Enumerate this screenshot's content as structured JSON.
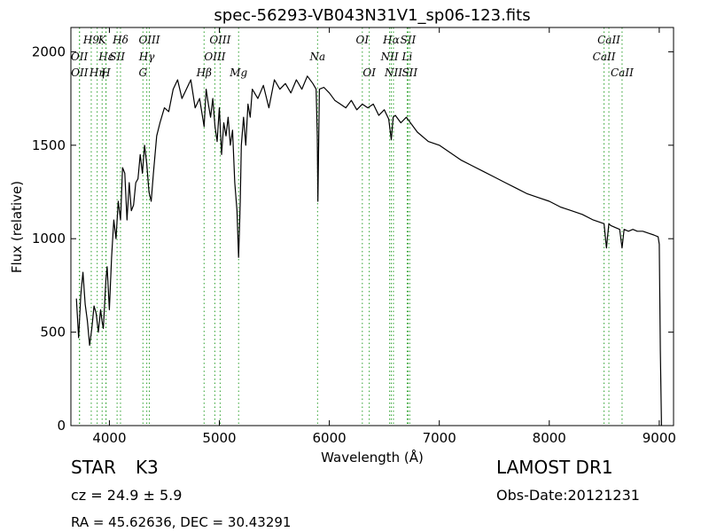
{
  "chart_data": {
    "type": "line",
    "title": "spec-56293-VB043N31V1_sp06-123.fits",
    "xlabel": "Wavelength (Å)",
    "ylabel": "Flux (relative)",
    "xlim": [
      3650,
      9130
    ],
    "ylim": [
      0,
      2130
    ],
    "xticks": [
      4000,
      5000,
      6000,
      7000,
      8000,
      9000
    ],
    "yticks": [
      0,
      500,
      1000,
      1500,
      2000
    ],
    "grid": false,
    "series": [
      {
        "x": [
          3700,
          3720,
          3740,
          3760,
          3780,
          3800,
          3820,
          3840,
          3860,
          3880,
          3900,
          3920,
          3933,
          3945,
          3968,
          3980,
          4000,
          4020,
          4040,
          4060,
          4080,
          4101,
          4120,
          4140,
          4160,
          4180,
          4200,
          4220,
          4240,
          4260,
          4280,
          4300,
          4320,
          4340,
          4360,
          4380,
          4400,
          4430,
          4460,
          4500,
          4540,
          4580,
          4620,
          4660,
          4700,
          4740,
          4780,
          4820,
          4861,
          4880,
          4900,
          4920,
          4940,
          4960,
          4980,
          5000,
          5020,
          5040,
          5060,
          5080,
          5100,
          5120,
          5140,
          5160,
          5175,
          5183,
          5190,
          5200,
          5220,
          5240,
          5260,
          5280,
          5300,
          5350,
          5400,
          5450,
          5500,
          5550,
          5600,
          5650,
          5700,
          5750,
          5800,
          5850,
          5880,
          5890,
          5896,
          5910,
          5950,
          6000,
          6050,
          6100,
          6150,
          6200,
          6250,
          6300,
          6350,
          6400,
          6450,
          6500,
          6540,
          6563,
          6580,
          6600,
          6650,
          6700,
          6800,
          6900,
          7000,
          7100,
          7200,
          7300,
          7400,
          7500,
          7600,
          7700,
          7800,
          7900,
          8000,
          8100,
          8200,
          8300,
          8400,
          8450,
          8498,
          8520,
          8542,
          8560,
          8600,
          8640,
          8662,
          8680,
          8720,
          8760,
          8800,
          8850,
          8900,
          8950,
          8990,
          9000,
          9010,
          9020
        ],
        "values": [
          680,
          470,
          700,
          820,
          650,
          560,
          430,
          520,
          640,
          600,
          500,
          620,
          560,
          520,
          780,
          850,
          620,
          900,
          1100,
          1000,
          1200,
          1100,
          1380,
          1350,
          1100,
          1300,
          1150,
          1180,
          1300,
          1320,
          1450,
          1350,
          1500,
          1400,
          1250,
          1200,
          1350,
          1550,
          1620,
          1700,
          1680,
          1800,
          1850,
          1750,
          1800,
          1850,
          1700,
          1750,
          1600,
          1800,
          1720,
          1650,
          1750,
          1600,
          1520,
          1700,
          1450,
          1620,
          1550,
          1650,
          1500,
          1580,
          1300,
          1150,
          900,
          1050,
          1200,
          1500,
          1650,
          1500,
          1720,
          1650,
          1800,
          1750,
          1820,
          1700,
          1850,
          1800,
          1830,
          1780,
          1850,
          1800,
          1870,
          1830,
          1800,
          1550,
          1200,
          1800,
          1810,
          1780,
          1740,
          1720,
          1700,
          1740,
          1690,
          1720,
          1700,
          1720,
          1660,
          1690,
          1640,
          1530,
          1650,
          1660,
          1620,
          1650,
          1570,
          1520,
          1500,
          1460,
          1420,
          1390,
          1360,
          1330,
          1300,
          1270,
          1240,
          1220,
          1200,
          1170,
          1150,
          1130,
          1100,
          1090,
          1080,
          950,
          1080,
          1070,
          1060,
          1050,
          950,
          1050,
          1040,
          1050,
          1040,
          1040,
          1030,
          1020,
          1010,
          970,
          400,
          0
        ]
      }
    ],
    "lines": [
      {
        "name": "H9",
        "x": 3835,
        "style": "top"
      },
      {
        "name": "OII",
        "x": 3727,
        "style": "mid"
      },
      {
        "name": "OII",
        "x": 3729,
        "style": "bottom"
      },
      {
        "name": "Hη",
        "x": 3889,
        "style": "bottom"
      },
      {
        "name": "Hε",
        "x": 3970,
        "style": "mid"
      },
      {
        "name": "K",
        "x": 3934,
        "style": "top"
      },
      {
        "name": "SII",
        "x": 4070,
        "style": "mid"
      },
      {
        "name": "H",
        "x": 3968,
        "style": "bottom"
      },
      {
        "name": "Hδ",
        "x": 4101,
        "style": "top"
      },
      {
        "name": "OIII",
        "x": 4363,
        "style": "top"
      },
      {
        "name": "Hγ",
        "x": 4340,
        "style": "mid"
      },
      {
        "name": "G",
        "x": 4305,
        "style": "bottom"
      },
      {
        "name": "OIII",
        "x": 5007,
        "style": "top"
      },
      {
        "name": "OIII",
        "x": 4959,
        "style": "mid"
      },
      {
        "name": "Hβ",
        "x": 4861,
        "style": "bottom"
      },
      {
        "name": "Mg",
        "x": 5175,
        "style": "bottom"
      },
      {
        "name": "Na",
        "x": 5893,
        "style": "mid"
      },
      {
        "name": "OI",
        "x": 6300,
        "style": "top"
      },
      {
        "name": "OI",
        "x": 6363,
        "style": "bottom"
      },
      {
        "name": "Hα",
        "x": 6563,
        "style": "top"
      },
      {
        "name": "SII",
        "x": 6716,
        "style": "top"
      },
      {
        "name": "NII",
        "x": 6548,
        "style": "mid"
      },
      {
        "name": "Li",
        "x": 6708,
        "style": "mid"
      },
      {
        "name": "NII",
        "x": 6583,
        "style": "bottom"
      },
      {
        "name": "SII",
        "x": 6731,
        "style": "bottom"
      },
      {
        "name": "CaII",
        "x": 8542,
        "style": "top"
      },
      {
        "name": "CaII",
        "x": 8498,
        "style": "mid"
      },
      {
        "name": "CaII",
        "x": 8662,
        "style": "bottom"
      }
    ]
  },
  "footer": {
    "class_label": "STAR",
    "subclass": "K3",
    "cz": "cz = 24.9 ± 5.9",
    "radec": "RA = 45.62636, DEC = 30.43291",
    "survey": "LAMOST DR1",
    "obs_date": "Obs-Date:20121231"
  },
  "colors": {
    "line_marker": "#2ca02c",
    "spectrum": "#000000"
  }
}
